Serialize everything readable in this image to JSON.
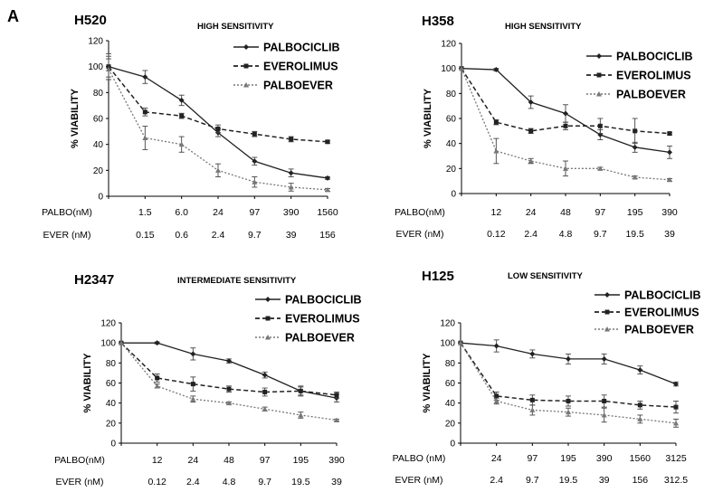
{
  "figure": {
    "panel_label": "A",
    "colors": {
      "palbociclib": "#222222",
      "everolimus": "#222222",
      "palboever": "#666666"
    }
  },
  "chart_data": [
    {
      "type": "line",
      "cell_line": "H520",
      "sensitivity": "HIGH SENSITIVITY",
      "ylabel": "% VIABILITY",
      "ylim": [
        0,
        120
      ],
      "yticks": [
        0,
        20,
        40,
        60,
        80,
        100,
        120
      ],
      "row1_label": "PALBO(nM)",
      "row1": [
        "",
        "1.5",
        "6.0",
        "24",
        "97",
        "390",
        "1560"
      ],
      "row2_label": "EVER (nM)",
      "row2": [
        "",
        "0.15",
        "0.6",
        "2.4",
        "9.7",
        "39",
        "156"
      ],
      "series": [
        {
          "name": "PALBOCICLIB",
          "values": [
            100,
            92,
            74,
            49,
            27,
            18,
            14
          ],
          "errors": [
            10,
            5,
            4,
            3,
            3,
            3,
            1
          ]
        },
        {
          "name": "EVEROLIMUS",
          "values": [
            100,
            65,
            62,
            52,
            48,
            44,
            42
          ],
          "errors": [
            8,
            3,
            2,
            3,
            2,
            2,
            1
          ]
        },
        {
          "name": "PALBOEVER",
          "values": [
            98,
            45,
            40,
            20,
            11,
            7,
            5
          ],
          "errors": [
            8,
            9,
            6,
            5,
            4,
            3,
            1
          ]
        }
      ]
    },
    {
      "type": "line",
      "cell_line": "H358",
      "sensitivity": "HIGH SENSITIVITY",
      "ylabel": "% VIABILITY",
      "ylim": [
        0,
        120
      ],
      "yticks": [
        0,
        20,
        40,
        60,
        80,
        100,
        120
      ],
      "row1_label": "PALBO(nM)",
      "row1": [
        "",
        "12",
        "24",
        "48",
        "97",
        "195",
        "390"
      ],
      "row2_label": "EVER (nM)",
      "row2": [
        "",
        "0.12",
        "2.4",
        "4.8",
        "9.7",
        "19.5",
        "39"
      ],
      "series": [
        {
          "name": "PALBOCICLIB",
          "values": [
            100,
            99,
            73,
            64,
            47,
            37,
            33
          ],
          "errors": [
            0,
            1,
            5,
            7,
            4,
            4,
            5
          ]
        },
        {
          "name": "EVEROLIMUS",
          "values": [
            100,
            57,
            50,
            54,
            54,
            50,
            48
          ],
          "errors": [
            0,
            2,
            2,
            3,
            6,
            10,
            1
          ]
        },
        {
          "name": "PALBOEVER",
          "values": [
            100,
            34,
            26,
            20,
            20,
            13,
            11
          ],
          "errors": [
            0,
            10,
            2,
            6,
            1,
            1,
            1
          ]
        }
      ]
    },
    {
      "type": "line",
      "cell_line": "H2347",
      "sensitivity": "INTERMEDIATE SENSITIVITY",
      "ylabel": "% VIABILITY",
      "ylim": [
        0,
        120
      ],
      "yticks": [
        0,
        20,
        40,
        60,
        80,
        100,
        120
      ],
      "row1_label": "PALBO(nM)",
      "row1": [
        "",
        "12",
        "24",
        "48",
        "97",
        "195",
        "390"
      ],
      "row2_label": "EVER (nM)",
      "row2": [
        "",
        "0.12",
        "2.4",
        "4.8",
        "9.7",
        "19.5",
        "39"
      ],
      "series": [
        {
          "name": "PALBOCICLIB",
          "values": [
            100,
            100,
            89,
            82,
            68,
            52,
            45
          ],
          "errors": [
            0,
            1,
            6,
            2,
            3,
            5,
            4
          ]
        },
        {
          "name": "EVEROLIMUS",
          "values": [
            100,
            65,
            59,
            54,
            51,
            52,
            48
          ],
          "errors": [
            0,
            4,
            7,
            3,
            4,
            4,
            3
          ]
        },
        {
          "name": "PALBOEVER",
          "values": [
            100,
            57,
            44,
            40,
            34,
            28,
            23
          ],
          "errors": [
            0,
            2,
            3,
            1,
            2,
            3,
            1
          ]
        }
      ]
    },
    {
      "type": "line",
      "cell_line": "H125",
      "sensitivity": "LOW SENSITIVITY",
      "ylabel": "% VIABILITY",
      "ylim": [
        0,
        120
      ],
      "yticks": [
        0,
        20,
        40,
        60,
        80,
        100,
        120
      ],
      "row1_label": "PALBO (nM)",
      "row1": [
        "",
        "24",
        "97",
        "195",
        "390",
        "1560",
        "3125"
      ],
      "row2_label": "EVER (nM)",
      "row2": [
        "",
        "2.4",
        "9.7",
        "19.5",
        "39",
        "156",
        "312.5"
      ],
      "series": [
        {
          "name": "PALBOCICLIB",
          "values": [
            100,
            97,
            89,
            84,
            84,
            73,
            59
          ],
          "errors": [
            0,
            6,
            4,
            5,
            5,
            4,
            2
          ]
        },
        {
          "name": "EVEROLIMUS",
          "values": [
            100,
            47,
            43,
            42,
            42,
            38,
            36
          ],
          "errors": [
            0,
            4,
            5,
            5,
            6,
            4,
            6
          ]
        },
        {
          "name": "PALBOEVER",
          "values": [
            100,
            42,
            33,
            31,
            28,
            24,
            20
          ],
          "errors": [
            0,
            3,
            5,
            4,
            7,
            4,
            4
          ]
        }
      ]
    }
  ]
}
